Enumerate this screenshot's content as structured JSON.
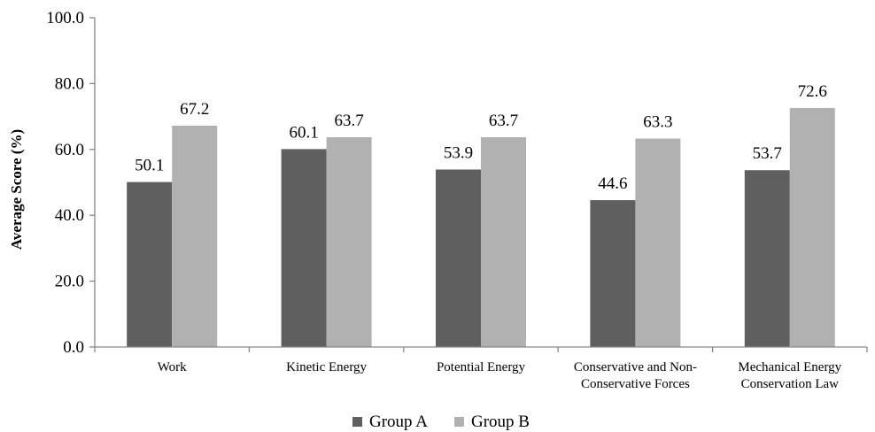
{
  "chart_data": {
    "type": "bar",
    "title": "",
    "xlabel": "",
    "ylabel": "Average Score (%)",
    "ylim": [
      0,
      100
    ],
    "yticks": [
      "0.0",
      "20.0",
      "40.0",
      "60.0",
      "80.0",
      "100.0"
    ],
    "grid": false,
    "legend_position": "bottom",
    "categories": [
      [
        "Work"
      ],
      [
        "Kinetic Energy"
      ],
      [
        "Potential Energy"
      ],
      [
        "Conservative and Non-",
        "Conservative Forces"
      ],
      [
        "Mechanical Energy",
        "Conservation Law"
      ]
    ],
    "series": [
      {
        "name": "Group A",
        "color": "#5f5f5f",
        "values": [
          50.1,
          60.1,
          53.9,
          44.6,
          53.7
        ],
        "labels": [
          "50.1",
          "60.1",
          "53.9",
          "44.6",
          "53.7"
        ]
      },
      {
        "name": "Group B",
        "color": "#b1b1b1",
        "values": [
          67.2,
          63.7,
          63.7,
          63.3,
          72.6
        ],
        "labels": [
          "67.2",
          "63.7",
          "63.7",
          "63.3",
          "72.6"
        ]
      }
    ]
  }
}
